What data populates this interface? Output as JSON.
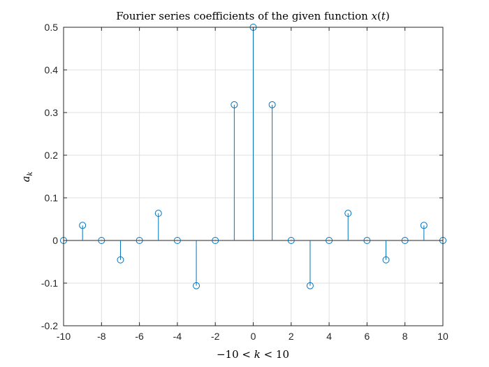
{
  "chart_data": {
    "type": "stem",
    "title": "Fourier series coefficients of the given function x(t)",
    "xlabel": "−10 < k < 10",
    "ylabel": "a_k",
    "xlim": [
      -10,
      10
    ],
    "ylim": [
      -0.2,
      0.5
    ],
    "xticks": [
      -10,
      -8,
      -6,
      -4,
      -2,
      0,
      2,
      4,
      6,
      8,
      10
    ],
    "yticks": [
      -0.2,
      -0.1,
      0,
      0.1,
      0.2,
      0.3,
      0.4,
      0.5
    ],
    "grid": true,
    "series": [
      {
        "color": "#0072BD",
        "x": [
          -10,
          -9,
          -8,
          -7,
          -6,
          -5,
          -4,
          -3,
          -2,
          -1,
          0,
          1,
          2,
          3,
          4,
          5,
          6,
          7,
          8,
          9,
          10
        ],
        "y": [
          0,
          0.0354,
          0,
          -0.0455,
          0,
          0.0637,
          0,
          -0.1061,
          0,
          0.3183,
          0.5,
          0.3183,
          0,
          -0.1061,
          0,
          0.0637,
          0,
          -0.0455,
          0,
          0.0354,
          0
        ]
      }
    ]
  }
}
